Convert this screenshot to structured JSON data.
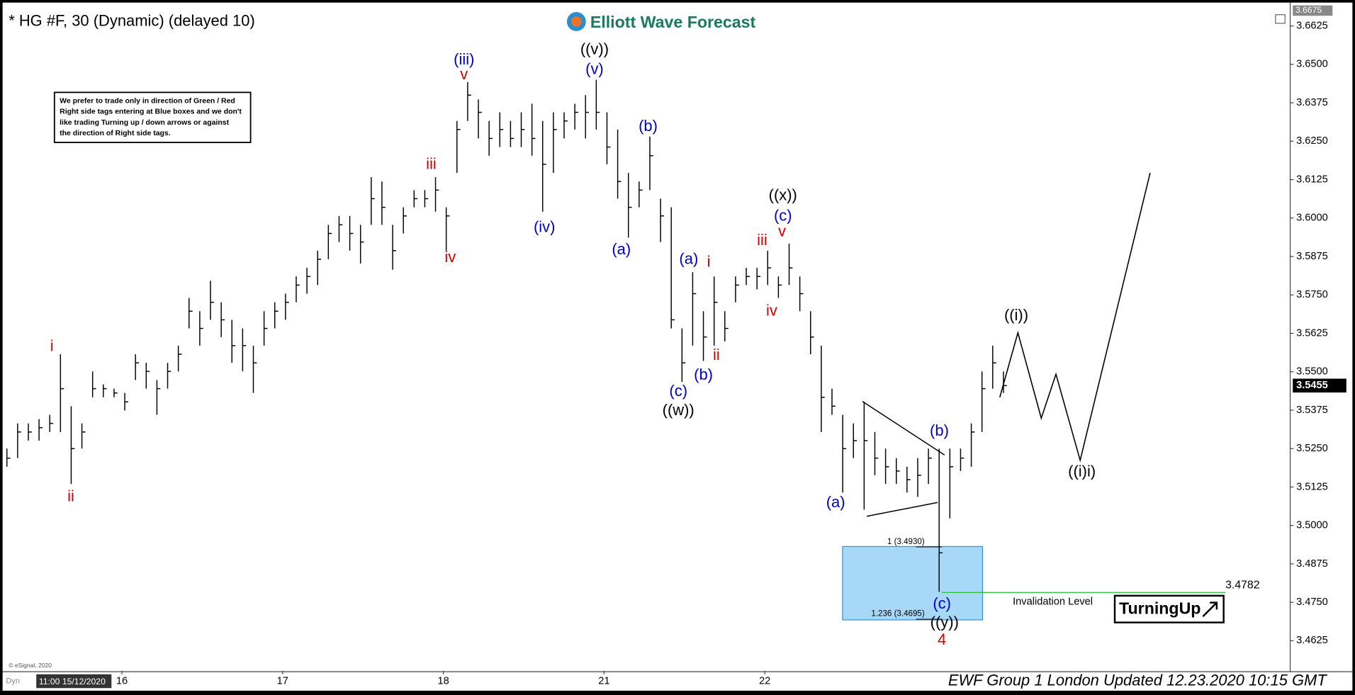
{
  "chart_data": {
    "type": "ohlc",
    "title": "* HG #F, 30 (Dynamic) (delayed 10)",
    "brand": "Elliott Wave Forecast",
    "note": [
      "We prefer to trade only in direction of Green / Red",
      "Right side tags entering at Blue boxes and we don't",
      "like trading Turning up / down arrows or against",
      "the direction of Right side tags."
    ],
    "footer": "EWF Group 1 London Updated 12.23.2020 10:15 GMT",
    "copyright": "© eSignal, 2020",
    "corner_tag": "Dyn",
    "start_time": "11:00 15/12/2020",
    "xlim": [
      -0.24,
      119.76
    ],
    "xticks": [
      {
        "value": 10.73,
        "label": "16"
      },
      {
        "value": 25.73,
        "label": "17"
      },
      {
        "value": 40.73,
        "label": "18"
      },
      {
        "value": 55.73,
        "label": "21"
      },
      {
        "value": 70.73,
        "label": "22"
      }
    ],
    "ylim": [
      3.4527,
      3.6687
    ],
    "yticks": [
      3.4625,
      {
        "value": 3.475,
        "label": "3.4750"
      },
      3.4875,
      {
        "value": 3.5,
        "label": "3.5000"
      },
      3.5125,
      {
        "value": 3.525,
        "label": "3.5250"
      },
      3.5375,
      {
        "value": 3.55,
        "label": "3.5500"
      },
      3.5625,
      {
        "value": 3.575,
        "label": "3.5750"
      },
      3.5875,
      {
        "value": 3.6,
        "label": "3.6000"
      },
      3.6125,
      {
        "value": 3.625,
        "label": "3.6250"
      },
      3.6375,
      {
        "value": 3.65,
        "label": "3.6500"
      },
      3.6625
    ],
    "session_high": 3.6675,
    "last_price": 3.5455,
    "color": "#000000",
    "highs": [
      3.525,
      3.5332,
      3.5332,
      3.5346,
      3.536,
      3.5557,
      3.5388,
      3.5332,
      3.5501,
      3.5459,
      3.5445,
      3.5431,
      3.5557,
      3.5529,
      3.5473,
      3.5529,
      3.5585,
      3.574,
      3.5697,
      3.5796,
      3.5726,
      3.5669,
      3.5641,
      3.5585,
      3.5697,
      3.5726,
      3.5754,
      3.581,
      3.5838,
      3.5894,
      3.5978,
      3.6007,
      3.6007,
      3.5978,
      3.6133,
      3.6119,
      3.5978,
      3.6035,
      3.6091,
      3.6091,
      3.6133,
      3.6035,
      3.6316,
      3.6442,
      3.6386,
      3.6316,
      3.6344,
      3.6316,
      3.6344,
      3.6372,
      3.6316,
      3.6344,
      3.6344,
      3.6372,
      3.64,
      3.645,
      3.6344,
      3.6288,
      3.6147,
      3.6119,
      3.6265,
      3.6063,
      3.6035,
      3.5641,
      3.5824,
      3.5697,
      3.581,
      3.5697,
      3.581,
      3.5838,
      3.5838,
      3.5894,
      3.581,
      3.5917,
      3.581,
      3.5697,
      3.5585,
      3.5445,
      3.536,
      3.5332,
      3.5402,
      3.5304,
      3.525,
      3.5219,
      3.5191,
      3.5219,
      3.525,
      3.525,
      3.525,
      3.525,
      3.5332,
      3.5501,
      3.5585,
      3.5501
    ],
    "lows": [
      3.5191,
      3.5219,
      3.5276,
      3.5276,
      3.5304,
      3.5304,
      3.5135,
      3.525,
      3.5417,
      3.5417,
      3.5417,
      3.5374,
      3.5473,
      3.5445,
      3.536,
      3.5445,
      3.5501,
      3.5641,
      3.5585,
      3.5669,
      3.5613,
      3.5529,
      3.5501,
      3.5431,
      3.5585,
      3.5641,
      3.5669,
      3.5726,
      3.5754,
      3.5782,
      3.5866,
      3.5922,
      3.5894,
      3.5852,
      3.5978,
      3.5978,
      3.5832,
      3.595,
      3.6035,
      3.6035,
      3.6021,
      3.5894,
      3.6147,
      3.6316,
      3.6259,
      3.6203,
      3.6231,
      3.6231,
      3.6231,
      3.6203,
      3.6021,
      3.6147,
      3.6259,
      3.6288,
      3.6259,
      3.6288,
      3.6175,
      3.6063,
      3.5936,
      3.6035,
      3.6091,
      3.5922,
      3.5641,
      3.5467,
      3.5585,
      3.5535,
      3.5585,
      3.5599,
      3.5726,
      3.5782,
      3.5768,
      3.5782,
      3.574,
      3.5782,
      3.5697,
      3.5557,
      3.5304,
      3.536,
      3.5107,
      3.5219,
      3.5051,
      3.5163,
      3.5135,
      3.5135,
      3.5107,
      3.5093,
      3.5135,
      3.4784,
      3.5023,
      3.5177,
      3.5191,
      3.5304,
      3.5445,
      3.5431
    ],
    "closes": [
      3.5219,
      3.5304,
      3.5304,
      3.5318,
      3.5332,
      3.5445,
      3.525,
      3.5304,
      3.5445,
      3.5445,
      3.5431,
      3.5402,
      3.5529,
      3.5501,
      3.5445,
      3.5501,
      3.5557,
      3.5697,
      3.5641,
      3.5726,
      3.5669,
      3.5585,
      3.5585,
      3.5529,
      3.5641,
      3.5697,
      3.5726,
      3.5782,
      3.581,
      3.5866,
      3.595,
      3.5978,
      3.595,
      3.5922,
      3.6063,
      3.6035,
      3.5894,
      3.6007,
      3.6063,
      3.6063,
      3.6091,
      3.6007,
      3.6288,
      3.64,
      3.6344,
      3.6259,
      3.6288,
      3.6259,
      3.6288,
      3.6259,
      3.6175,
      3.6288,
      3.6316,
      3.6344,
      3.6344,
      3.6344,
      3.6231,
      3.6119,
      3.6035,
      3.6091,
      3.6203,
      3.6007,
      3.5669,
      3.5529,
      3.5754,
      3.5613,
      3.5726,
      3.5641,
      3.5782,
      3.581,
      3.581,
      3.5838,
      3.5782,
      3.5838,
      3.5754,
      3.5613,
      3.5417,
      3.5388,
      3.525,
      3.5276,
      3.5276,
      3.5219,
      3.5191,
      3.5177,
      3.5149,
      3.5163,
      3.5219,
      3.4911,
      3.5191,
      3.5219,
      3.5304,
      3.5445,
      3.5529,
      3.5455
    ],
    "projection": {
      "x": [
        92.66,
        94.35,
        96.53,
        97.9,
        100.16,
        106.69
      ],
      "y": [
        3.5417,
        3.5627,
        3.5349,
        3.5492,
        3.5212,
        3.6147
      ]
    },
    "fib_levels": [
      {
        "value": 3.493,
        "label": "1 (3.4930)"
      },
      {
        "value": 3.4695,
        "label": "1.236 (3.4695)"
      }
    ],
    "invalidation": {
      "value": 3.4782,
      "label": "Invalidation Level"
    },
    "signal": "TurningUp",
    "annotations": [
      {
        "text": "i",
        "color": "#d00000"
      },
      {
        "text": "ii",
        "color": "#d00000"
      },
      {
        "text": "iii",
        "color": "#d00000"
      },
      {
        "text": "iv",
        "color": "#d00000"
      },
      {
        "text": "v",
        "color": "#d00000"
      },
      {
        "text": "(iii)",
        "color": "#0000c8"
      },
      {
        "text": "(iv)",
        "color": "#0000c8"
      },
      {
        "text": "((v))",
        "color": "#000000"
      },
      {
        "text": "(v)",
        "color": "#0000c8"
      },
      {
        "text": "(a)",
        "color": "#0000c8"
      },
      {
        "text": "(b)",
        "color": "#0000c8"
      },
      {
        "text": "(c)",
        "color": "#0000c8"
      },
      {
        "text": "((w))",
        "color": "#000000"
      },
      {
        "text": "(a)",
        "color": "#0000c8"
      },
      {
        "text": "i",
        "color": "#d00000"
      },
      {
        "text": "(b)",
        "color": "#0000c8"
      },
      {
        "text": "ii",
        "color": "#d00000"
      },
      {
        "text": "iii",
        "color": "#d00000"
      },
      {
        "text": "iv",
        "color": "#d00000"
      },
      {
        "text": "v",
        "color": "#d00000"
      },
      {
        "text": "(c)",
        "color": "#0000c8"
      },
      {
        "text": "((x))",
        "color": "#000000"
      },
      {
        "text": "(a)",
        "color": "#0000c8"
      },
      {
        "text": "(b)",
        "color": "#0000c8"
      },
      {
        "text": "(c)",
        "color": "#0000c8"
      },
      {
        "text": "((y))",
        "color": "#000000"
      },
      {
        "text": "4",
        "color": "#d00000"
      },
      {
        "text": "((i))",
        "color": "#000000"
      },
      {
        "text": "((i)i)",
        "color": "#000000"
      }
    ]
  }
}
